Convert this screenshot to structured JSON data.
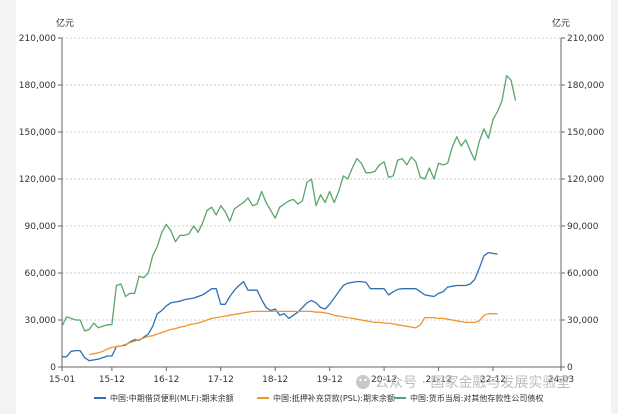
{
  "chart_data": {
    "type": "line",
    "y_unit_left": "亿元",
    "y_unit_right": "亿元",
    "ylim": [
      0,
      210000
    ],
    "y_ticks": [
      "0",
      "30,000",
      "60,000",
      "90,000",
      "120,000",
      "150,000",
      "180,000",
      "210,000"
    ],
    "x_tick_labels": [
      "15-01",
      "15-12",
      "16-12",
      "17-12",
      "18-12",
      "19-12",
      "20-12",
      "21-12",
      "22-12",
      "24-03"
    ],
    "x_tick_positions": [
      0,
      11,
      23,
      35,
      47,
      59,
      71,
      83,
      95,
      110
    ],
    "grid": "horizontal-dotted",
    "legend_position": "bottom",
    "series": [
      {
        "name": "中国:中期借贷便利(MLF):期末余额",
        "color": "#2f6fb5",
        "points": [
          [
            0,
            6500
          ],
          [
            1,
            6500
          ],
          [
            2,
            10000
          ],
          [
            3,
            10500
          ],
          [
            4,
            10500
          ],
          [
            5,
            6000
          ],
          [
            6,
            4000
          ],
          [
            7,
            4500
          ],
          [
            8,
            5000
          ],
          [
            9,
            6000
          ],
          [
            10,
            7000
          ],
          [
            11,
            7000
          ],
          [
            12,
            13000
          ],
          [
            13,
            13500
          ],
          [
            14,
            14000
          ],
          [
            15,
            16000
          ],
          [
            16,
            17500
          ],
          [
            17,
            17000
          ],
          [
            18,
            19000
          ],
          [
            19,
            21000
          ],
          [
            20,
            26000
          ],
          [
            21,
            34000
          ],
          [
            22,
            36000
          ],
          [
            23,
            39000
          ],
          [
            24,
            41000
          ],
          [
            25,
            41500
          ],
          [
            26,
            42000
          ],
          [
            27,
            43000
          ],
          [
            28,
            43500
          ],
          [
            29,
            44000
          ],
          [
            30,
            45000
          ],
          [
            31,
            46000
          ],
          [
            32,
            48000
          ],
          [
            33,
            50000
          ],
          [
            34,
            50000
          ],
          [
            35,
            40000
          ],
          [
            36,
            40000
          ],
          [
            37,
            45000
          ],
          [
            38,
            49000
          ],
          [
            39,
            52000
          ],
          [
            40,
            54500
          ],
          [
            41,
            49000
          ],
          [
            42,
            49000
          ],
          [
            43,
            49000
          ],
          [
            44,
            43000
          ],
          [
            45,
            38000
          ],
          [
            46,
            36000
          ],
          [
            47,
            37000
          ],
          [
            48,
            33000
          ],
          [
            49,
            34000
          ],
          [
            50,
            31000
          ],
          [
            51,
            33000
          ],
          [
            52,
            35000
          ],
          [
            53,
            38000
          ],
          [
            54,
            41000
          ],
          [
            55,
            42500
          ],
          [
            56,
            41000
          ],
          [
            57,
            38000
          ],
          [
            58,
            37000
          ],
          [
            59,
            40000
          ],
          [
            60,
            44000
          ],
          [
            61,
            48000
          ],
          [
            62,
            52000
          ],
          [
            63,
            53500
          ],
          [
            64,
            54000
          ],
          [
            65,
            54500
          ],
          [
            66,
            54500
          ],
          [
            67,
            54000
          ],
          [
            68,
            50000
          ],
          [
            69,
            50000
          ],
          [
            70,
            50000
          ],
          [
            71,
            50000
          ],
          [
            72,
            46000
          ],
          [
            73,
            48000
          ],
          [
            74,
            49500
          ],
          [
            75,
            50000
          ],
          [
            76,
            50000
          ],
          [
            77,
            50000
          ],
          [
            78,
            50000
          ],
          [
            79,
            48000
          ],
          [
            80,
            46000
          ],
          [
            81,
            45500
          ],
          [
            82,
            45000
          ],
          [
            83,
            47000
          ],
          [
            84,
            48000
          ],
          [
            85,
            51000
          ],
          [
            86,
            51500
          ],
          [
            87,
            52000
          ],
          [
            88,
            52000
          ],
          [
            89,
            52000
          ],
          [
            90,
            53000
          ],
          [
            91,
            56000
          ],
          [
            92,
            63000
          ],
          [
            93,
            71000
          ],
          [
            94,
            73000
          ],
          [
            95,
            72500
          ],
          [
            96,
            72000
          ]
        ]
      },
      {
        "name": "中国:抵押补充贷款(PSL):期末余额",
        "color": "#f0962e",
        "points": [
          [
            6,
            8000
          ],
          [
            7,
            8500
          ],
          [
            8,
            9000
          ],
          [
            9,
            10000
          ],
          [
            10,
            11500
          ],
          [
            11,
            12500
          ],
          [
            12,
            13000
          ],
          [
            13,
            13500
          ],
          [
            14,
            14500
          ],
          [
            15,
            15500
          ],
          [
            16,
            16500
          ],
          [
            17,
            17500
          ],
          [
            18,
            18500
          ],
          [
            19,
            19500
          ],
          [
            20,
            20000
          ],
          [
            21,
            21000
          ],
          [
            22,
            22000
          ],
          [
            23,
            23000
          ],
          [
            24,
            24000
          ],
          [
            25,
            24500
          ],
          [
            26,
            25500
          ],
          [
            27,
            26000
          ],
          [
            28,
            27000
          ],
          [
            29,
            27500
          ],
          [
            30,
            28000
          ],
          [
            31,
            29000
          ],
          [
            32,
            30000
          ],
          [
            33,
            31000
          ],
          [
            34,
            31500
          ],
          [
            35,
            32000
          ],
          [
            36,
            32500
          ],
          [
            37,
            33000
          ],
          [
            38,
            33500
          ],
          [
            39,
            34000
          ],
          [
            40,
            34500
          ],
          [
            41,
            35000
          ],
          [
            42,
            35500
          ],
          [
            43,
            35500
          ],
          [
            44,
            35500
          ],
          [
            45,
            35500
          ],
          [
            46,
            35500
          ],
          [
            47,
            35500
          ],
          [
            48,
            35500
          ],
          [
            49,
            35500
          ],
          [
            50,
            35500
          ],
          [
            51,
            35500
          ],
          [
            52,
            35500
          ],
          [
            53,
            35500
          ],
          [
            54,
            35500
          ],
          [
            55,
            35500
          ],
          [
            56,
            35000
          ],
          [
            57,
            35000
          ],
          [
            58,
            34500
          ],
          [
            59,
            34000
          ],
          [
            60,
            33000
          ],
          [
            61,
            32500
          ],
          [
            62,
            32000
          ],
          [
            63,
            31500
          ],
          [
            64,
            31000
          ],
          [
            65,
            30500
          ],
          [
            66,
            30000
          ],
          [
            67,
            29500
          ],
          [
            68,
            29000
          ],
          [
            69,
            28500
          ],
          [
            70,
            28500
          ],
          [
            71,
            28000
          ],
          [
            72,
            28000
          ],
          [
            73,
            27500
          ],
          [
            74,
            27000
          ],
          [
            75,
            26500
          ],
          [
            76,
            26000
          ],
          [
            77,
            25500
          ],
          [
            78,
            25000
          ],
          [
            79,
            27000
          ],
          [
            80,
            31500
          ],
          [
            81,
            31500
          ],
          [
            82,
            31500
          ],
          [
            83,
            31000
          ],
          [
            84,
            31000
          ],
          [
            85,
            30500
          ],
          [
            86,
            30000
          ],
          [
            87,
            29500
          ],
          [
            88,
            29000
          ],
          [
            89,
            28500
          ],
          [
            90,
            28500
          ],
          [
            91,
            28500
          ],
          [
            92,
            29500
          ],
          [
            93,
            33000
          ],
          [
            94,
            34000
          ],
          [
            95,
            34000
          ],
          [
            96,
            34000
          ]
        ]
      },
      {
        "name": "中国:货币当局:对其他存款性公司债权",
        "color": "#5aa66a",
        "points": [
          [
            0,
            26000
          ],
          [
            1,
            32000
          ],
          [
            2,
            31000
          ],
          [
            3,
            30000
          ],
          [
            4,
            30000
          ],
          [
            5,
            23000
          ],
          [
            6,
            24000
          ],
          [
            7,
            28000
          ],
          [
            8,
            25000
          ],
          [
            9,
            26000
          ],
          [
            10,
            27000
          ],
          [
            11,
            27000
          ],
          [
            12,
            52000
          ],
          [
            13,
            53000
          ],
          [
            14,
            45000
          ],
          [
            15,
            47000
          ],
          [
            16,
            47000
          ],
          [
            17,
            58000
          ],
          [
            18,
            57000
          ],
          [
            19,
            60000
          ],
          [
            20,
            71000
          ],
          [
            21,
            77000
          ],
          [
            22,
            86000
          ],
          [
            23,
            91000
          ],
          [
            24,
            87000
          ],
          [
            25,
            80000
          ],
          [
            26,
            84000
          ],
          [
            27,
            84000
          ],
          [
            28,
            85000
          ],
          [
            29,
            90000
          ],
          [
            30,
            86000
          ],
          [
            31,
            92000
          ],
          [
            32,
            100000
          ],
          [
            33,
            102000
          ],
          [
            34,
            97000
          ],
          [
            35,
            103000
          ],
          [
            36,
            99000
          ],
          [
            37,
            93000
          ],
          [
            38,
            101000
          ],
          [
            39,
            103000
          ],
          [
            40,
            105000
          ],
          [
            41,
            108000
          ],
          [
            42,
            103000
          ],
          [
            43,
            104000
          ],
          [
            44,
            112000
          ],
          [
            45,
            105000
          ],
          [
            46,
            100000
          ],
          [
            47,
            95000
          ],
          [
            48,
            102000
          ],
          [
            49,
            104000
          ],
          [
            50,
            106000
          ],
          [
            51,
            107000
          ],
          [
            52,
            104000
          ],
          [
            53,
            106000
          ],
          [
            54,
            118000
          ],
          [
            55,
            120000
          ],
          [
            56,
            103000
          ],
          [
            57,
            110000
          ],
          [
            58,
            105000
          ],
          [
            59,
            112000
          ],
          [
            60,
            105000
          ],
          [
            61,
            112000
          ],
          [
            62,
            122000
          ],
          [
            63,
            120000
          ],
          [
            64,
            127000
          ],
          [
            65,
            133000
          ],
          [
            66,
            130000
          ],
          [
            67,
            124000
          ],
          [
            68,
            124000
          ],
          [
            69,
            125000
          ],
          [
            70,
            129000
          ],
          [
            71,
            131000
          ],
          [
            72,
            121000
          ],
          [
            73,
            122000
          ],
          [
            74,
            132000
          ],
          [
            75,
            133000
          ],
          [
            76,
            129000
          ],
          [
            77,
            134000
          ],
          [
            78,
            131000
          ],
          [
            79,
            121000
          ],
          [
            80,
            120000
          ],
          [
            81,
            127000
          ],
          [
            82,
            120000
          ],
          [
            83,
            130000
          ],
          [
            84,
            129000
          ],
          [
            85,
            130000
          ],
          [
            86,
            140000
          ],
          [
            87,
            147000
          ],
          [
            88,
            141000
          ],
          [
            89,
            145000
          ],
          [
            90,
            138000
          ],
          [
            91,
            132000
          ],
          [
            92,
            144000
          ],
          [
            93,
            152000
          ],
          [
            94,
            146000
          ],
          [
            95,
            158000
          ],
          [
            96,
            163000
          ],
          [
            97,
            170000
          ],
          [
            98,
            186000
          ],
          [
            99,
            183000
          ],
          [
            100,
            170000
          ]
        ]
      }
    ]
  },
  "watermark": {
    "text": "公众号 · 国家金融与发展实验室",
    "icon": "wechat-icon"
  }
}
